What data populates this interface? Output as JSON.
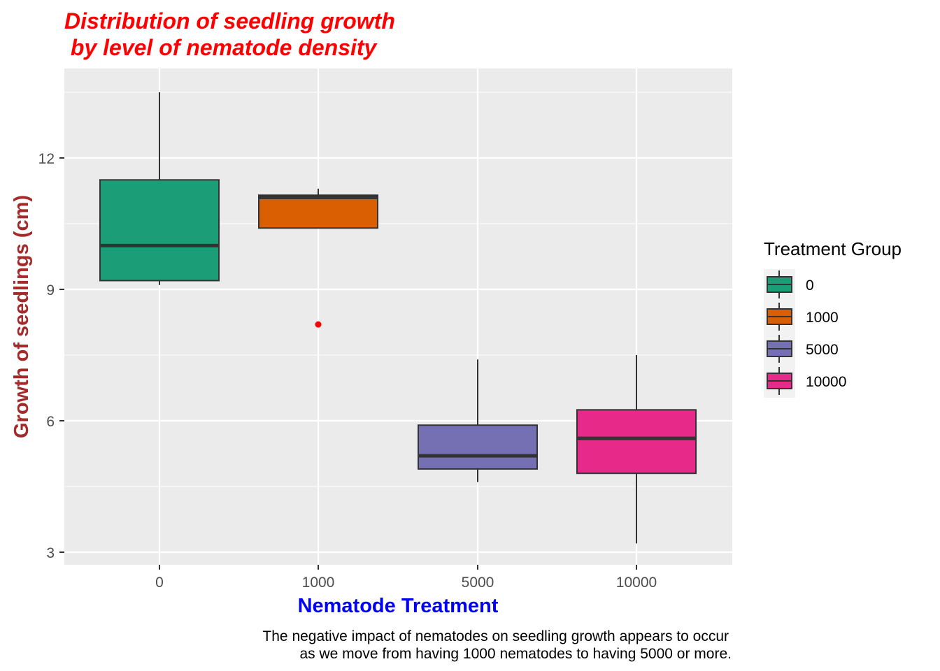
{
  "chart_data": {
    "type": "boxplot",
    "title_lines": [
      "Distribution of seedling growth",
      " by level of nematode density"
    ],
    "xlabel": "Nematode Treatment",
    "ylabel": "Growth of seedlings (cm)",
    "caption_lines": [
      "The negative impact of nematodes on seedling growth appears to occur",
      "as we move from having 1000 nematodes to having 5000 or more."
    ],
    "categories": [
      "0",
      "1000",
      "5000",
      "10000"
    ],
    "yticks": [
      3,
      6,
      9,
      12
    ],
    "ylim": [
      2.7,
      14.0
    ],
    "grid": true,
    "legend": {
      "title": "Treatment Group",
      "placement": "right",
      "entries": [
        "0",
        "1000",
        "5000",
        "10000"
      ]
    },
    "boxes": [
      {
        "category": "0",
        "color": "#1B9E77",
        "whisker_low": 9.1,
        "q1": 9.2,
        "median": 10.0,
        "q3": 11.5,
        "whisker_high": 13.5,
        "outliers": []
      },
      {
        "category": "1000",
        "color": "#D95F02",
        "whisker_low": 10.4,
        "q1": 10.4,
        "median": 11.1,
        "q3": 11.15,
        "whisker_high": 11.3,
        "outliers": [
          8.2
        ]
      },
      {
        "category": "5000",
        "color": "#7570B3",
        "whisker_low": 4.6,
        "q1": 4.9,
        "median": 5.2,
        "q3": 5.9,
        "whisker_high": 7.4,
        "outliers": []
      },
      {
        "category": "10000",
        "color": "#E7298A",
        "whisker_low": 3.2,
        "q1": 4.8,
        "median": 5.6,
        "q3": 6.25,
        "whisker_high": 7.5,
        "outliers": []
      }
    ],
    "colors": {
      "title": "#FF0000",
      "xlabel": "#0000FF",
      "ylabel": "#A52A2A",
      "outlier": "#FF0000",
      "panel": "#EBEBEB",
      "grid": "#FFFFFF",
      "box_outline": "#333333"
    }
  }
}
